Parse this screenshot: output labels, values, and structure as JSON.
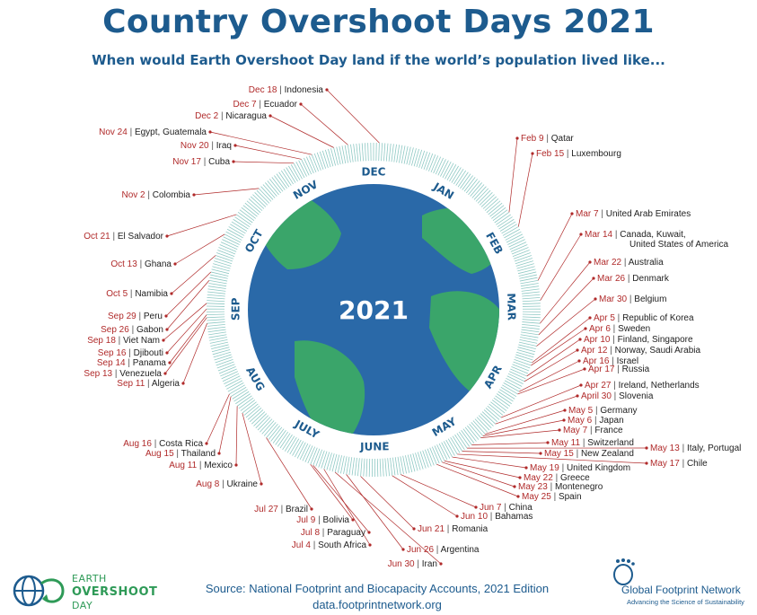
{
  "title": "Country Overshoot Days 2021",
  "subtitle": "When would Earth Overshoot Day land if the world’s population lived like...",
  "center_year": "2021",
  "months": [
    "JAN",
    "FEB",
    "MAR",
    "APR",
    "MAY",
    "JUNE",
    "JULY",
    "AUG",
    "SEP",
    "OCT",
    "NOV",
    "DEC"
  ],
  "source": "Source: National Footprint and Biocapacity Accounts, 2021 Edition",
  "url": "data.footprintnetwork.org",
  "logo_left": {
    "line1": "EARTH",
    "line2": "OVERSHOOT",
    "line3": "DAY"
  },
  "logo_right": {
    "name": "Global Footprint Network",
    "tagline": "Advancing the Science of Sustainability"
  },
  "colors": {
    "title": "#1d5b8e",
    "date": "#b02a2a",
    "ocean": "#2a69a8",
    "land": "#3aa56a",
    "ring": "#8fc9c4"
  },
  "chart_data": {
    "type": "radial-timeline",
    "year": 2021,
    "entries": [
      {
        "date": "Feb 9",
        "country": "Qatar"
      },
      {
        "date": "Feb 15",
        "country": "Luxembourg"
      },
      {
        "date": "Mar 7",
        "country": "United Arab Emirates"
      },
      {
        "date": "Mar 14",
        "country": "Canada, Kuwait,",
        "country2": "United States of America"
      },
      {
        "date": "Mar 22",
        "country": "Australia"
      },
      {
        "date": "Mar 26",
        "country": "Denmark"
      },
      {
        "date": "Mar 30",
        "country": "Belgium"
      },
      {
        "date": "Apr 5",
        "country": "Republic of Korea"
      },
      {
        "date": "Apr 6",
        "country": "Sweden"
      },
      {
        "date": "Apr 10",
        "country": "Finland, Singapore"
      },
      {
        "date": "Apr 12",
        "country": "Norway, Saudi Arabia"
      },
      {
        "date": "Apr 16",
        "country": "Israel"
      },
      {
        "date": "Apr 17",
        "country": "Russia"
      },
      {
        "date": "Apr 27",
        "country": "Ireland, Netherlands"
      },
      {
        "date": "April 30",
        "country": "Slovenia"
      },
      {
        "date": "May 5",
        "country": "Germany"
      },
      {
        "date": "May 6",
        "country": "Japan"
      },
      {
        "date": "May 7",
        "country": "France"
      },
      {
        "date": "May 11",
        "country": "Switzerland"
      },
      {
        "date": "May 13",
        "country": "Italy, Portugal"
      },
      {
        "date": "May 15",
        "country": "New Zealand"
      },
      {
        "date": "May 17",
        "country": "Chile"
      },
      {
        "date": "May 19",
        "country": "United Kingdom"
      },
      {
        "date": "May 22",
        "country": "Greece"
      },
      {
        "date": "May 23",
        "country": "Montenegro"
      },
      {
        "date": "May 25",
        "country": "Spain"
      },
      {
        "date": "Jun 7",
        "country": "China"
      },
      {
        "date": "Jun 10",
        "country": "Bahamas"
      },
      {
        "date": "Jun 21",
        "country": "Romania"
      },
      {
        "date": "Jun 26",
        "country": "Argentina"
      },
      {
        "date": "Jun 30",
        "country": "Iran"
      },
      {
        "date": "Jul 4",
        "country": "South Africa"
      },
      {
        "date": "Jul 8",
        "country": "Paraguay"
      },
      {
        "date": "Jul 9",
        "country": "Bolivia"
      },
      {
        "date": "Jul 27",
        "country": "Brazil"
      },
      {
        "date": "Aug 8",
        "country": "Ukraine"
      },
      {
        "date": "Aug 11",
        "country": "Mexico"
      },
      {
        "date": "Aug 15",
        "country": "Thailand"
      },
      {
        "date": "Aug 16",
        "country": "Costa Rica"
      },
      {
        "date": "Sep 11",
        "country": "Algeria"
      },
      {
        "date": "Sep 13",
        "country": "Venezuela"
      },
      {
        "date": "Sep 14",
        "country": "Panama"
      },
      {
        "date": "Sep 16",
        "country": "Djibouti"
      },
      {
        "date": "Sep 18",
        "country": "Viet Nam"
      },
      {
        "date": "Sep 26",
        "country": "Gabon"
      },
      {
        "date": "Sep 29",
        "country": "Peru"
      },
      {
        "date": "Oct 5",
        "country": "Namibia"
      },
      {
        "date": "Oct 13",
        "country": "Ghana"
      },
      {
        "date": "Oct 21",
        "country": "El Salvador"
      },
      {
        "date": "Nov 2",
        "country": "Colombia"
      },
      {
        "date": "Nov 17",
        "country": "Cuba"
      },
      {
        "date": "Nov 20",
        "country": "Iraq"
      },
      {
        "date": "Nov 24",
        "country": "Egypt, Guatemala"
      },
      {
        "date": "Dec 2",
        "country": "Nicaragua"
      },
      {
        "date": "Dec 7",
        "country": "Ecuador"
      },
      {
        "date": "Dec 18",
        "country": "Indonesia"
      }
    ]
  }
}
